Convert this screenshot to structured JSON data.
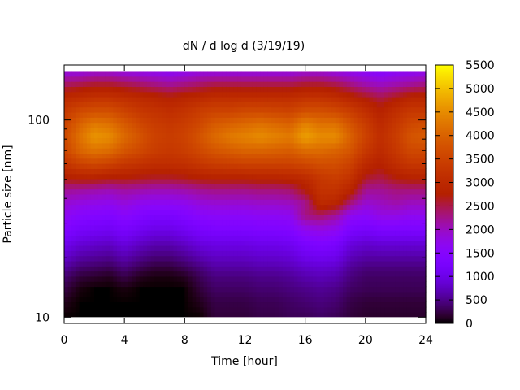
{
  "chart_data": {
    "type": "heatmap",
    "title": "dN / d log d (3/19/19)",
    "xlabel": "Time [hour]",
    "ylabel": "Particle size [nm]",
    "xlim": [
      0,
      24
    ],
    "ylim": [
      9.3,
      190
    ],
    "y_scale": "log",
    "x_ticks": [
      0,
      4,
      8,
      12,
      16,
      20,
      24
    ],
    "y_ticks": [
      10,
      100
    ],
    "colorbar": {
      "min": 0,
      "max": 5500,
      "ticks": [
        0,
        500,
        1000,
        1500,
        2000,
        2500,
        3000,
        3500,
        4000,
        4500,
        5000,
        5500
      ],
      "palette": "gnuplot hot (black-purple-red-yellow)"
    },
    "size_bins_nm": [
      10,
      12,
      14,
      16,
      18,
      20,
      24,
      28,
      33,
      38,
      44,
      51,
      60,
      70,
      82,
      96,
      112,
      130,
      152,
      177
    ],
    "time_hours": [
      0,
      1,
      2,
      3,
      4,
      5,
      6,
      7,
      8,
      9,
      10,
      11,
      12,
      13,
      14,
      15,
      16,
      17,
      18,
      19,
      20,
      21,
      22,
      23,
      24
    ],
    "values": [
      [
        0,
        0,
        0,
        0,
        0,
        0,
        0,
        0,
        0,
        0,
        200,
        200,
        200,
        250,
        250,
        300,
        300,
        350,
        300,
        200,
        150,
        150,
        150,
        150,
        150
      ],
      [
        100,
        0,
        0,
        0,
        0,
        0,
        0,
        0,
        0,
        100,
        250,
        250,
        250,
        300,
        300,
        350,
        400,
        450,
        400,
        250,
        200,
        200,
        200,
        200,
        200
      ],
      [
        250,
        50,
        0,
        0,
        50,
        0,
        0,
        0,
        0,
        200,
        350,
        350,
        350,
        400,
        400,
        450,
        500,
        550,
        500,
        350,
        300,
        300,
        300,
        300,
        300
      ],
      [
        400,
        200,
        150,
        100,
        250,
        100,
        50,
        50,
        100,
        300,
        450,
        450,
        450,
        500,
        500,
        550,
        650,
        700,
        650,
        450,
        350,
        350,
        350,
        350,
        350
      ],
      [
        600,
        400,
        350,
        300,
        450,
        300,
        200,
        200,
        300,
        450,
        600,
        600,
        600,
        650,
        650,
        700,
        800,
        850,
        800,
        550,
        450,
        450,
        450,
        450,
        450
      ],
      [
        800,
        600,
        550,
        500,
        650,
        500,
        400,
        400,
        500,
        650,
        750,
        750,
        750,
        800,
        800,
        850,
        1000,
        1050,
        1000,
        700,
        600,
        600,
        600,
        600,
        600
      ],
      [
        1100,
        900,
        850,
        800,
        950,
        800,
        700,
        700,
        800,
        950,
        1000,
        1000,
        1000,
        1050,
        1050,
        1100,
        1300,
        1400,
        1300,
        950,
        850,
        900,
        900,
        900,
        900
      ],
      [
        1400,
        1200,
        1150,
        1100,
        1250,
        1100,
        1000,
        1000,
        1100,
        1250,
        1300,
        1300,
        1300,
        1350,
        1350,
        1400,
        1700,
        1800,
        1700,
        1300,
        1200,
        1300,
        1300,
        1300,
        1300
      ],
      [
        1700,
        1500,
        1450,
        1400,
        1550,
        1400,
        1300,
        1300,
        1400,
        1550,
        1600,
        1600,
        1600,
        1650,
        1650,
        1700,
        2300,
        2400,
        2200,
        1700,
        1600,
        1800,
        1800,
        1700,
        1700
      ],
      [
        1900,
        1800,
        1750,
        1700,
        1850,
        1700,
        1650,
        1650,
        1700,
        1850,
        1900,
        1900,
        1900,
        1950,
        1950,
        2000,
        2200,
        3000,
        2900,
        2300,
        1900,
        2000,
        2100,
        2000,
        2000
      ],
      [
        2200,
        2150,
        2100,
        2050,
        2150,
        2100,
        2050,
        2050,
        2100,
        2200,
        2250,
        2250,
        2250,
        2300,
        2300,
        2350,
        2700,
        3200,
        3200,
        2900,
        2200,
        2200,
        2300,
        2300,
        2300
      ],
      [
        2700,
        2800,
        2800,
        2700,
        2700,
        2650,
        2600,
        2600,
        2650,
        2750,
        2800,
        2800,
        2800,
        2850,
        2850,
        2900,
        3000,
        3300,
        3400,
        3200,
        2600,
        2500,
        2700,
        2800,
        2800
      ],
      [
        3200,
        3500,
        3600,
        3500,
        3300,
        3200,
        3100,
        3100,
        3150,
        3300,
        3400,
        3450,
        3500,
        3500,
        3500,
        3500,
        3600,
        3700,
        3700,
        3500,
        3000,
        2800,
        3100,
        3300,
        3300
      ],
      [
        3500,
        4000,
        4200,
        4100,
        3800,
        3600,
        3400,
        3300,
        3400,
        3600,
        3800,
        3900,
        4000,
        4000,
        3950,
        3900,
        4100,
        4100,
        4000,
        3800,
        3300,
        3000,
        3300,
        3600,
        3600
      ],
      [
        3600,
        4200,
        4600,
        4500,
        4100,
        3800,
        3500,
        3400,
        3500,
        3800,
        4100,
        4300,
        4400,
        4500,
        4400,
        4300,
        4700,
        4500,
        4500,
        4000,
        3500,
        3100,
        3400,
        3800,
        3900
      ],
      [
        3500,
        4000,
        4300,
        4200,
        3900,
        3600,
        3400,
        3300,
        3400,
        3600,
        3900,
        4000,
        4100,
        4200,
        4100,
        4000,
        4400,
        4200,
        4200,
        3800,
        3400,
        3000,
        3300,
        3600,
        3700
      ],
      [
        3300,
        3600,
        3700,
        3700,
        3500,
        3300,
        3200,
        3100,
        3200,
        3400,
        3500,
        3500,
        3600,
        3600,
        3550,
        3500,
        3700,
        3700,
        3600,
        3400,
        3100,
        2800,
        3100,
        3300,
        3300
      ],
      [
        3000,
        3100,
        3200,
        3200,
        3100,
        3000,
        2900,
        2800,
        2900,
        3000,
        3100,
        3100,
        3100,
        3100,
        3100,
        3100,
        3200,
        3200,
        3100,
        2900,
        2700,
        2500,
        2700,
        2900,
        2900
      ],
      [
        2400,
        2500,
        2600,
        2600,
        2500,
        2400,
        2300,
        2200,
        2300,
        2400,
        2500,
        2500,
        2500,
        2500,
        2500,
        2500,
        2600,
        2600,
        2500,
        2300,
        2100,
        2000,
        2100,
        2200,
        2300
      ],
      [
        1800,
        1800,
        1900,
        1900,
        1800,
        1750,
        1700,
        1650,
        1700,
        1800,
        1800,
        1800,
        1800,
        1800,
        1800,
        1800,
        1900,
        1900,
        1800,
        1700,
        1600,
        1500,
        1600,
        1650,
        1700
      ]
    ]
  }
}
